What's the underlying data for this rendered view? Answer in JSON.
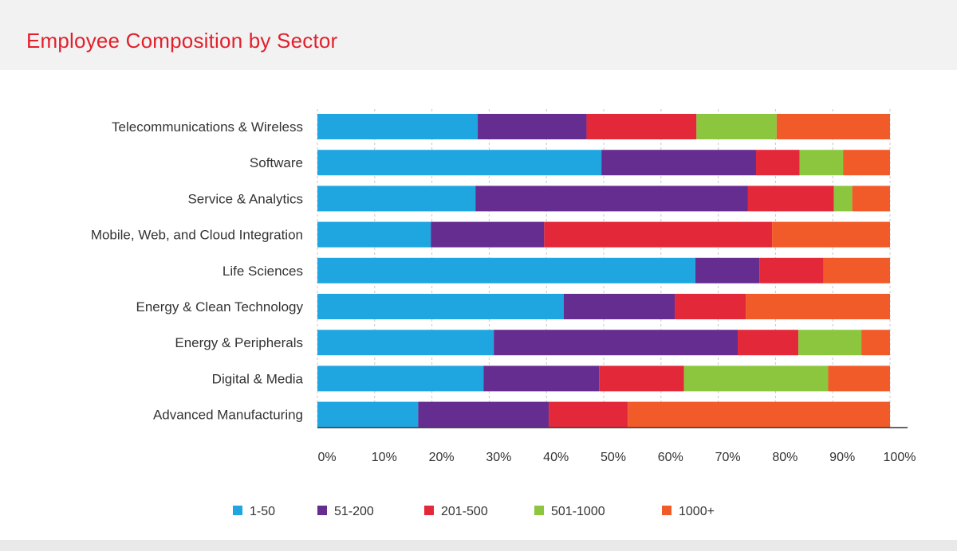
{
  "page": {
    "title": "Employee Composition by Sector"
  },
  "chart_data": {
    "type": "bar",
    "orientation": "horizontal",
    "stacked": true,
    "percent_stacked": true,
    "title": "Employee Composition by Sector",
    "xlabel": "",
    "ylabel": "",
    "xlim": [
      0,
      100
    ],
    "x_ticks": [
      "0%",
      "10%",
      "20%",
      "30%",
      "40%",
      "50%",
      "60%",
      "70%",
      "80%",
      "90%",
      "100%"
    ],
    "grid": "vertical-dashed",
    "legend_position": "bottom",
    "categories": [
      "Telecommunications & Wireless",
      "Software",
      "Service & Analytics",
      "Mobile, Web, and Cloud Integration",
      "Life Sciences",
      "Energy & Clean Technology",
      "Energy & Peripherals",
      "Digital & Media",
      "Advanced Manufacturing"
    ],
    "series": [
      {
        "name": "1-50",
        "color": "#1fa6e0",
        "values": [
          28.0,
          49.6,
          27.6,
          19.8,
          66.0,
          43.0,
          30.8,
          29.0,
          17.6
        ]
      },
      {
        "name": "51-200",
        "color": "#662d91",
        "values": [
          19.0,
          27.0,
          47.6,
          19.8,
          11.2,
          19.4,
          42.6,
          20.2,
          22.8
        ]
      },
      {
        "name": "201-500",
        "color": "#e3283a",
        "values": [
          19.2,
          7.6,
          15.0,
          39.8,
          11.2,
          12.4,
          10.6,
          14.8,
          13.8
        ]
      },
      {
        "name": "501-1000",
        "color": "#8cc63f",
        "values": [
          14.0,
          7.6,
          3.2,
          0,
          0,
          0,
          11.0,
          25.2,
          0
        ]
      },
      {
        "name": "1000+",
        "color": "#f15a29",
        "values": [
          19.8,
          8.2,
          6.6,
          20.6,
          11.6,
          25.2,
          5.0,
          10.8,
          45.8
        ]
      }
    ]
  }
}
